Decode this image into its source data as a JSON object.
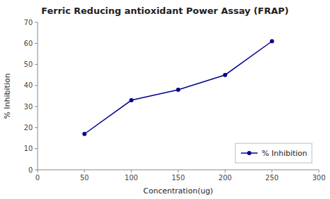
{
  "chart_data": {
    "type": "line",
    "title": "Ferric Reducing antioxidant Power Assay (FRAP)",
    "xlabel": "Concentration(ug)",
    "ylabel": "% Inhibition",
    "x": [
      50,
      100,
      150,
      200,
      250
    ],
    "series": [
      {
        "name": "% Inhibition",
        "color": "#00008B",
        "marker": "circle",
        "values": [
          17,
          33,
          38,
          45,
          61
        ]
      }
    ],
    "xlim": [
      0,
      300
    ],
    "ylim": [
      0,
      70
    ],
    "xticks": [
      0,
      50,
      100,
      150,
      200,
      250,
      300
    ],
    "yticks": [
      0,
      10,
      20,
      30,
      40,
      50,
      60,
      70
    ],
    "grid": false,
    "legend": "lower right"
  }
}
